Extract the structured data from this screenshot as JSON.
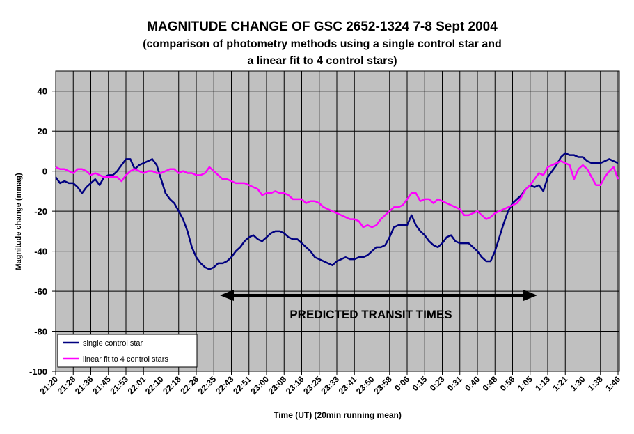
{
  "chart_data": {
    "type": "line",
    "title": "MAGNITUDE CHANGE OF GSC 2652-1324  7-8 Sept 2004",
    "subtitle": [
      "(comparison of photometry methods using a single control star and",
      "a linear fit to 4 control stars)"
    ],
    "xlabel": "Time (UT)  (20min running mean)",
    "ylabel": "Magnitude change (mmag)",
    "annotation": "PREDICTED TRANSIT TIMES",
    "categories": [
      "21:20",
      null,
      null,
      null,
      "21:28",
      null,
      null,
      null,
      "21:36",
      null,
      null,
      null,
      "21:45",
      null,
      null,
      null,
      "21:53",
      null,
      null,
      null,
      "22:01",
      null,
      null,
      null,
      "22:10",
      null,
      null,
      null,
      "22:18",
      null,
      null,
      null,
      "22:26",
      null,
      null,
      null,
      "22:35",
      null,
      null,
      null,
      "22:43",
      null,
      null,
      null,
      "22:51",
      null,
      null,
      null,
      "23:00",
      null,
      null,
      null,
      "23:08",
      null,
      null,
      null,
      "23:16",
      null,
      null,
      null,
      "23:25",
      null,
      null,
      null,
      "23:33",
      null,
      null,
      null,
      "23:41",
      null,
      null,
      null,
      "23:50",
      null,
      null,
      null,
      "23:58",
      null,
      null,
      null,
      "0:06",
      null,
      null,
      null,
      "0:15",
      null,
      null,
      null,
      "0:23",
      null,
      null,
      null,
      "0:31",
      null,
      null,
      null,
      "0:40",
      null,
      null,
      null,
      "0:48",
      null,
      null,
      null,
      "0:56",
      null,
      null,
      null,
      "1:05",
      null,
      null,
      null,
      "1:13",
      null,
      null,
      null,
      "1:21",
      null,
      null,
      null,
      "1:30",
      null,
      null,
      null,
      "1:38",
      null,
      null,
      null,
      "1:46"
    ],
    "series": [
      {
        "name": "single control star",
        "color": "#000080",
        "values": [
          -3,
          -6,
          -5,
          -6,
          -6,
          -8,
          -11,
          -8,
          -6,
          -4,
          -7,
          -3,
          -2,
          -2,
          0,
          3,
          6,
          6,
          1,
          3,
          4,
          5,
          6,
          3,
          -4,
          -11,
          -14,
          -16,
          -20,
          -24,
          -30,
          -38,
          -43,
          -46,
          -48,
          -49,
          -48,
          -46,
          -46,
          -45,
          -43,
          -40,
          -38,
          -35,
          -33,
          -32,
          -34,
          -35,
          -33,
          -31,
          -30,
          -30,
          -31,
          -33,
          -34,
          -34,
          -36,
          -38,
          -40,
          -43,
          -44,
          -45,
          -46,
          -47,
          -45,
          -44,
          -43,
          -44,
          -44,
          -43,
          -43,
          -42,
          -40,
          -38,
          -38,
          -37,
          -33,
          -28,
          -27,
          -27,
          -27,
          -22,
          -27,
          -30,
          -32,
          -35,
          -37,
          -38,
          -36,
          -33,
          -32,
          -35,
          -36,
          -36,
          -36,
          -38,
          -40,
          -43,
          -45,
          -45,
          -40,
          -33,
          -26,
          -20,
          -16,
          -14,
          -12,
          -9,
          -7,
          -8,
          -7,
          -10,
          -3,
          0,
          3,
          7,
          9,
          8,
          8,
          7,
          7,
          5,
          4,
          4,
          4,
          5,
          6,
          5,
          4
        ]
      },
      {
        "name": "linear fit to 4 control stars",
        "color": "#ff00ff",
        "values": [
          2,
          1,
          1,
          0,
          -1,
          1,
          1,
          0,
          -2,
          -1,
          -2,
          -3,
          -3,
          -3,
          -3,
          -5,
          -2,
          0,
          1,
          0,
          -1,
          0,
          0,
          -1,
          -1,
          0,
          1,
          1,
          -1,
          0,
          -1,
          -1,
          -2,
          -2,
          -1,
          2,
          0,
          -2,
          -4,
          -4,
          -5,
          -6,
          -6,
          -6,
          -7,
          -8,
          -9,
          -12,
          -11,
          -11,
          -10,
          -11,
          -11,
          -12,
          -14,
          -14,
          -14,
          -16,
          -15,
          -15,
          -16,
          -18,
          -19,
          -20,
          -21,
          -22,
          -23,
          -24,
          -24,
          -25,
          -28,
          -27,
          -28,
          -27,
          -24,
          -22,
          -20,
          -18,
          -18,
          -17,
          -14,
          -11,
          -11,
          -15,
          -14,
          -14,
          -16,
          -14,
          -15,
          -16,
          -17,
          -18,
          -19,
          -22,
          -22,
          -21,
          -20,
          -22,
          -24,
          -23,
          -21,
          -20,
          -19,
          -18,
          -17,
          -16,
          -13,
          -9,
          -7,
          -4,
          -1,
          -2,
          2,
          3,
          4,
          5,
          4,
          3,
          -4,
          1,
          3,
          1,
          -3,
          -7,
          -7,
          -3,
          0,
          2,
          -4
        ]
      }
    ],
    "ylim": [
      -100,
      50
    ],
    "yticks": [
      -100,
      -80,
      -60,
      -40,
      -20,
      0,
      20,
      40
    ],
    "grid": true,
    "legend": "lower left"
  }
}
